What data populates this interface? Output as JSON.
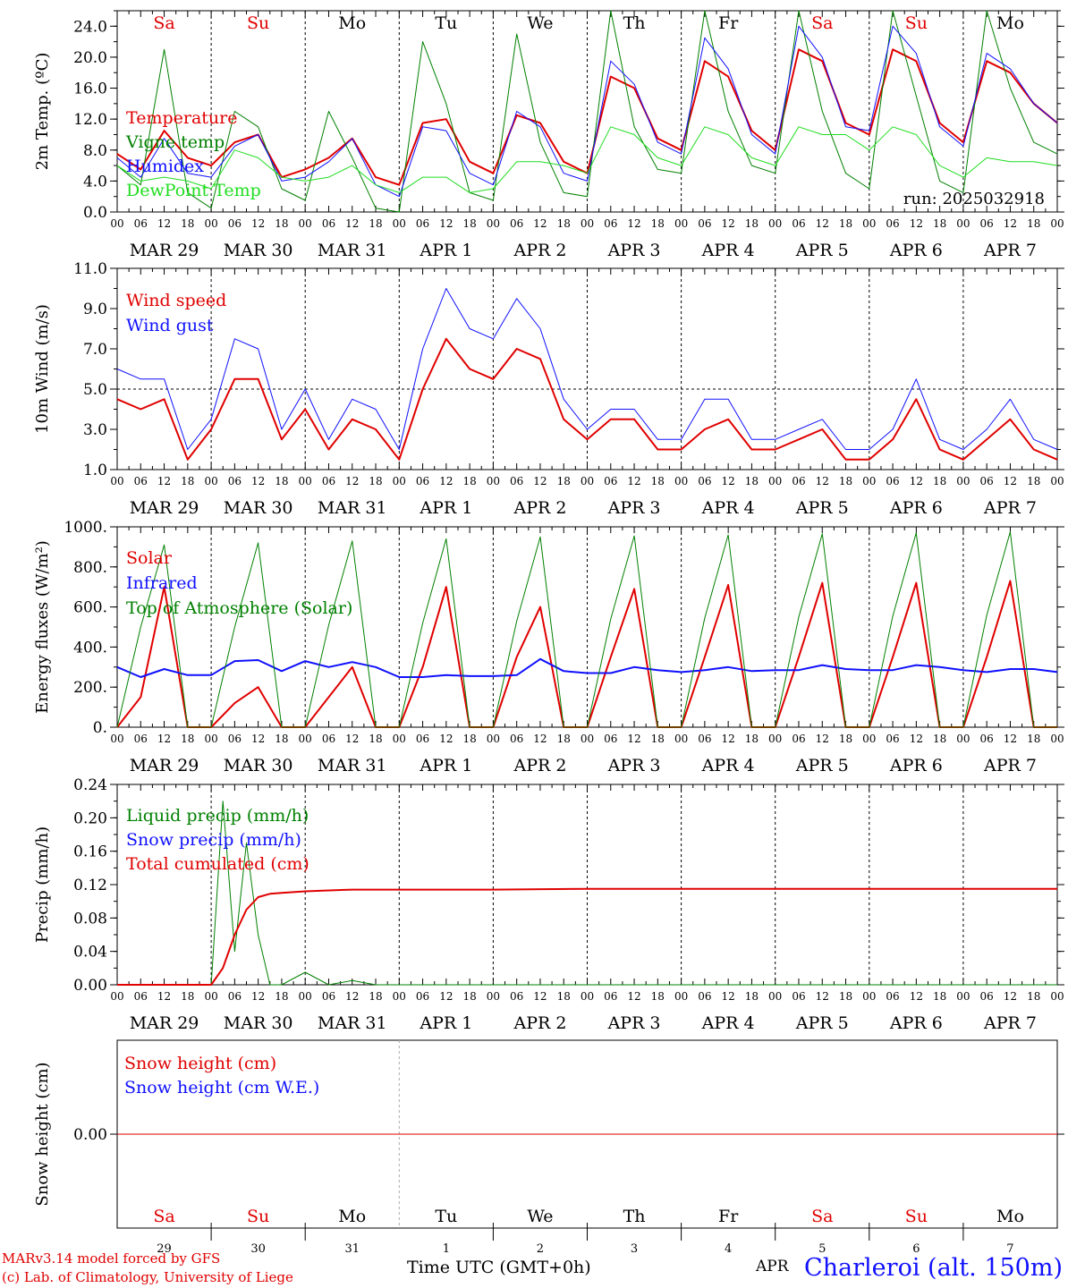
{
  "run_label": "run: 2025032918",
  "hour_ticks": [
    "00",
    "06",
    "12",
    "18"
  ],
  "date_labels": [
    "MAR 29",
    "MAR 30",
    "MAR 31",
    "APR  1",
    "APR  2",
    "APR  3",
    "APR  4",
    "APR  5",
    "APR  6",
    "APR  7"
  ],
  "weekday_labels": [
    "Sa",
    "Su",
    "Mo",
    "Tu",
    "We",
    "Th",
    "Fr",
    "Sa",
    "Su",
    "Mo"
  ],
  "weekday_colors": [
    "#e00000",
    "#e00000",
    "#000000",
    "#000000",
    "#000000",
    "#000000",
    "#000000",
    "#e00000",
    "#e00000",
    "#000000"
  ],
  "bottom_day_numbers": [
    "29",
    "30",
    "31",
    "1",
    "2",
    "3",
    "4",
    "5",
    "6",
    "7"
  ],
  "footer": {
    "model_line": "MARv3.14 model forced by GFS",
    "lab_line": "(c) Lab. of Climatology, University of Liege",
    "time_axis_label": "Time UTC (GMT+0h)",
    "month_label": "APR",
    "station": "Charleroi (alt. 150m)"
  },
  "chart_data": [
    {
      "type": "line",
      "ylabel": "2m Temp. (ºC)",
      "ylim": [
        0,
        26
      ],
      "yticks": [
        "0.0",
        "4.0",
        "8.0",
        "12.0",
        "16.0",
        "20.0",
        "24.0"
      ],
      "ytick_values": [
        0,
        4,
        8,
        12,
        16,
        20,
        24
      ],
      "x_hours": [
        0,
        6,
        12,
        18,
        24,
        30,
        36,
        42,
        48,
        54,
        60,
        66,
        72,
        78,
        84,
        90,
        96,
        102,
        108,
        114,
        120,
        126,
        132,
        138,
        144,
        150,
        156,
        162,
        168,
        174,
        180,
        186,
        192,
        198,
        204,
        210,
        216,
        222,
        228,
        234,
        240
      ],
      "legend": [
        {
          "label": "Temperature",
          "color": "#e00000"
        },
        {
          "label": "Vigne temp",
          "color": "#008000"
        },
        {
          "label": "Humidex",
          "color": "#1010ff"
        },
        {
          "label": "DewPoint Temp",
          "color": "#20dd20"
        }
      ],
      "series": [
        {
          "name": "Temperature",
          "color": "#e00000",
          "width": 2,
          "values": [
            7.5,
            5.5,
            10.5,
            7.0,
            6.0,
            9.0,
            10.0,
            4.5,
            5.5,
            7.0,
            9.5,
            4.5,
            3.5,
            11.5,
            12.0,
            6.5,
            5.0,
            12.5,
            11.5,
            6.5,
            5.0,
            17.5,
            16.0,
            9.5,
            8.0,
            19.5,
            17.5,
            10.5,
            8.0,
            21.0,
            19.5,
            11.5,
            10.0,
            21.0,
            19.5,
            11.5,
            9.0,
            19.5,
            18.0,
            14.0,
            11.5
          ]
        },
        {
          "name": "Vigne temp",
          "color": "#008000",
          "width": 1,
          "values": [
            6.0,
            3.5,
            21.0,
            2.5,
            0.5,
            13.0,
            11.0,
            3.0,
            1.5,
            13.0,
            7.0,
            0.5,
            0.0,
            22.0,
            14.0,
            2.5,
            1.5,
            23.0,
            9.0,
            2.5,
            2.0,
            26.0,
            11.0,
            5.5,
            5.0,
            26.0,
            13.0,
            6.0,
            5.0,
            26.0,
            13.0,
            5.0,
            3.0,
            26.0,
            15.0,
            4.0,
            2.5,
            26.0,
            16.0,
            9.0,
            7.5
          ]
        },
        {
          "name": "Humidex",
          "color": "#1010ff",
          "width": 1,
          "values": [
            7.0,
            4.5,
            9.5,
            5.0,
            4.5,
            8.5,
            10.0,
            4.0,
            4.5,
            6.5,
            9.5,
            3.5,
            2.0,
            11.0,
            10.5,
            5.0,
            3.5,
            13.0,
            11.0,
            5.0,
            4.0,
            19.5,
            16.5,
            9.0,
            7.5,
            22.5,
            18.5,
            10.0,
            7.5,
            24.0,
            20.0,
            11.0,
            10.5,
            24.0,
            20.5,
            11.0,
            8.5,
            20.5,
            18.5,
            14.0,
            11.5
          ]
        },
        {
          "name": "DewPoint Temp",
          "color": "#20dd20",
          "width": 1,
          "values": [
            6.0,
            4.0,
            4.5,
            4.0,
            3.0,
            8.0,
            7.0,
            4.5,
            4.0,
            4.5,
            6.0,
            3.5,
            2.5,
            4.5,
            4.5,
            2.5,
            3.0,
            6.5,
            6.5,
            6.0,
            5.0,
            11.0,
            10.0,
            7.0,
            6.0,
            11.0,
            10.0,
            7.0,
            6.0,
            11.0,
            10.0,
            10.0,
            8.0,
            11.0,
            10.0,
            6.0,
            4.5,
            7.0,
            6.5,
            6.5,
            6.0
          ]
        }
      ]
    },
    {
      "type": "line",
      "ylabel": "10m Wind (m/s)",
      "ylim": [
        1,
        11
      ],
      "yticks": [
        "1.0",
        "3.0",
        "5.0",
        "7.0",
        "9.0",
        "11.0"
      ],
      "ytick_values": [
        1,
        3,
        5,
        7,
        9,
        11
      ],
      "reference_line": 5,
      "x_hours": [
        0,
        6,
        12,
        18,
        24,
        30,
        36,
        42,
        48,
        54,
        60,
        66,
        72,
        78,
        84,
        90,
        96,
        102,
        108,
        114,
        120,
        126,
        132,
        138,
        144,
        150,
        156,
        162,
        168,
        174,
        180,
        186,
        192,
        198,
        204,
        210,
        216,
        222,
        228,
        234,
        240
      ],
      "legend": [
        {
          "label": "Wind speed",
          "color": "#e00000"
        },
        {
          "label": "Wind gust",
          "color": "#1010ff"
        }
      ],
      "series": [
        {
          "name": "Wind speed",
          "color": "#e00000",
          "width": 2,
          "values": [
            4.5,
            4.0,
            4.5,
            1.5,
            3.0,
            5.5,
            5.5,
            2.5,
            4.0,
            2.0,
            3.5,
            3.0,
            1.5,
            5.0,
            7.5,
            6.0,
            5.5,
            7.0,
            6.5,
            3.5,
            2.5,
            3.5,
            3.5,
            2.0,
            2.0,
            3.0,
            3.5,
            2.0,
            2.0,
            2.5,
            3.0,
            1.5,
            1.5,
            2.5,
            4.5,
            2.0,
            1.5,
            2.5,
            3.5,
            2.0,
            1.5
          ]
        },
        {
          "name": "Wind gust",
          "color": "#1010ff",
          "width": 1,
          "values": [
            6.0,
            5.5,
            5.5,
            2.0,
            3.5,
            7.5,
            7.0,
            3.0,
            5.0,
            2.5,
            4.5,
            4.0,
            2.0,
            7.0,
            10.0,
            8.0,
            7.5,
            9.5,
            8.0,
            4.5,
            3.0,
            4.0,
            4.0,
            2.5,
            2.5,
            4.5,
            4.5,
            2.5,
            2.5,
            3.0,
            3.5,
            2.0,
            2.0,
            3.0,
            5.5,
            2.5,
            2.0,
            3.0,
            4.5,
            2.5,
            2.0
          ]
        }
      ]
    },
    {
      "type": "line",
      "ylabel": "Energy fluxes (W/m²)",
      "ylim": [
        0,
        1000
      ],
      "yticks": [
        "0.",
        "200.",
        "400.",
        "600.",
        "800.",
        "1000."
      ],
      "ytick_values": [
        0,
        200,
        400,
        600,
        800,
        1000
      ],
      "x_hours": [
        0,
        6,
        12,
        18,
        24,
        30,
        36,
        42,
        48,
        54,
        60,
        66,
        72,
        78,
        84,
        90,
        96,
        102,
        108,
        114,
        120,
        126,
        132,
        138,
        144,
        150,
        156,
        162,
        168,
        174,
        180,
        186,
        192,
        198,
        204,
        210,
        216,
        222,
        228,
        234,
        240
      ],
      "legend": [
        {
          "label": "Solar",
          "color": "#e00000"
        },
        {
          "label": "Infrared",
          "color": "#1010ff"
        },
        {
          "label": "Top of Atmosphere (Solar)",
          "color": "#008000"
        }
      ],
      "series": [
        {
          "name": "Solar",
          "color": "#e00000",
          "width": 2,
          "values": [
            0,
            150,
            700,
            0,
            0,
            120,
            200,
            0,
            0,
            150,
            300,
            0,
            0,
            300,
            700,
            0,
            0,
            350,
            600,
            0,
            0,
            350,
            690,
            0,
            0,
            350,
            710,
            0,
            0,
            350,
            720,
            0,
            0,
            350,
            720,
            0,
            0,
            350,
            730,
            0,
            0
          ]
        },
        {
          "name": "Infrared",
          "color": "#1010ff",
          "width": 2,
          "values": [
            300,
            250,
            290,
            260,
            260,
            330,
            335,
            280,
            330,
            300,
            325,
            300,
            250,
            250,
            260,
            255,
            255,
            260,
            340,
            280,
            270,
            270,
            300,
            285,
            275,
            285,
            300,
            280,
            285,
            285,
            310,
            290,
            285,
            285,
            310,
            300,
            285,
            275,
            290,
            290,
            275
          ]
        },
        {
          "name": "Top of Atmosphere (Solar)",
          "color": "#008000",
          "width": 1,
          "values": [
            0,
            500,
            910,
            0,
            0,
            500,
            920,
            0,
            0,
            510,
            930,
            0,
            0,
            520,
            940,
            0,
            0,
            530,
            950,
            0,
            0,
            540,
            955,
            0,
            0,
            545,
            960,
            0,
            0,
            550,
            965,
            0,
            0,
            555,
            970,
            0,
            0,
            560,
            975,
            0,
            0
          ]
        }
      ]
    },
    {
      "type": "line",
      "ylabel": "Precip (mm/h)",
      "ylim": [
        0,
        0.24
      ],
      "yticks": [
        "0.00",
        "0.04",
        "0.08",
        "0.12",
        "0.16",
        "0.20",
        "0.24"
      ],
      "ytick_values": [
        0,
        0.04,
        0.08,
        0.12,
        0.16,
        0.2,
        0.24
      ],
      "x_hours": [
        0,
        6,
        12,
        18,
        24,
        27,
        30,
        33,
        36,
        39,
        42,
        48,
        54,
        60,
        66,
        72,
        96,
        120,
        144,
        168,
        192,
        216,
        240
      ],
      "legend": [
        {
          "label": "Liquid precip (mm/h)",
          "color": "#008000"
        },
        {
          "label": "Snow precip (mm/h)",
          "color": "#1010ff"
        },
        {
          "label": "Total cumulated (cm)",
          "color": "#e00000"
        }
      ],
      "series": [
        {
          "name": "Liquid precip (mm/h)",
          "color": "#008000",
          "width": 1,
          "values": [
            0,
            0,
            0,
            0,
            0,
            0.22,
            0.04,
            0.17,
            0.06,
            0,
            0,
            0.015,
            0,
            0.005,
            0,
            0,
            0,
            0,
            0,
            0,
            0,
            0,
            0
          ]
        },
        {
          "name": "Total cumulated (cm)",
          "color": "#e00000",
          "width": 2,
          "values": [
            0,
            0,
            0,
            0,
            0,
            0.02,
            0.06,
            0.09,
            0.105,
            0.109,
            0.11,
            0.112,
            0.113,
            0.114,
            0.114,
            0.114,
            0.114,
            0.115,
            0.115,
            0.115,
            0.115,
            0.115,
            0.115
          ]
        }
      ]
    },
    {
      "type": "line",
      "ylabel": "Snow height (cm)",
      "ylim": [
        -1,
        1
      ],
      "yticks": [
        "0.00"
      ],
      "ytick_values": [
        0
      ],
      "x_hours": [
        0,
        240
      ],
      "legend": [
        {
          "label": "Snow height (cm)",
          "color": "#e00000"
        },
        {
          "label": "Snow height (cm W.E.)",
          "color": "#1010ff"
        }
      ],
      "series": [
        {
          "name": "Snow height (cm)",
          "color": "#e00000",
          "width": 1,
          "values": [
            0,
            0
          ]
        }
      ]
    }
  ]
}
